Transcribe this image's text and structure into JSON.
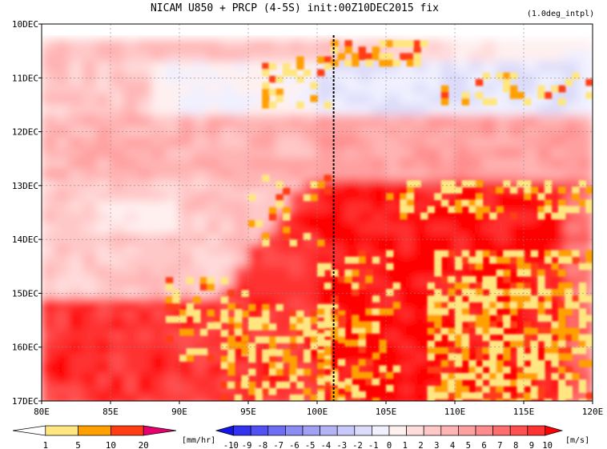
{
  "chart_data": {
    "type": "heatmap",
    "title": "NICAM   U850 + PRCP (4-5S) init:00Z10DEC2015 fix",
    "subtitle": "(1.0deg_intpl)",
    "xlabel": "",
    "ylabel": "",
    "x_ticks": [
      "80E",
      "85E",
      "90E",
      "95E",
      "100E",
      "105E",
      "110E",
      "115E",
      "120E"
    ],
    "x_tick_values": [
      80,
      85,
      90,
      95,
      100,
      105,
      110,
      115,
      120
    ],
    "xlim": [
      80,
      120
    ],
    "y_ticks": [
      "10DEC",
      "11DEC",
      "12DEC",
      "13DEC",
      "14DEC",
      "15DEC",
      "16DEC",
      "17DEC"
    ],
    "y_tick_values": [
      10,
      11,
      12,
      13,
      14,
      15,
      16,
      17
    ],
    "ylim": [
      10,
      17
    ],
    "grid": true,
    "marker_line_lon": 101.2,
    "precip_colorbar": {
      "labels": [
        "1",
        "5",
        "10",
        "20"
      ],
      "unit": "[mm/hr]",
      "colors": [
        "#ffffff",
        "#ffe680",
        "#ffa000",
        "#ff3c14",
        "#e6006e"
      ]
    },
    "wind_colorbar": {
      "labels": [
        "-10",
        "-9",
        "-8",
        "-7",
        "-6",
        "-5",
        "-4",
        "-3",
        "-2",
        "-1",
        "0",
        "1",
        "2",
        "3",
        "4",
        "5",
        "6",
        "7",
        "8",
        "9",
        "10"
      ],
      "unit": "[m/s]",
      "colors": [
        "#1414e6",
        "#3232f0",
        "#5050f5",
        "#6e6ef5",
        "#8c8cf5",
        "#a0a0f5",
        "#b4b4f5",
        "#c8c8fa",
        "#dcdcfa",
        "#f0f0ff",
        "#fff0f0",
        "#ffdcdc",
        "#ffc8c8",
        "#ffb4b4",
        "#ffa0a0",
        "#ff8c8c",
        "#ff6e6e",
        "#ff5050",
        "#ff3232",
        "#ff0000"
      ]
    },
    "u850_field_bands": [
      {
        "time_range": [
          10.3,
          10.7
        ],
        "lon_range": [
          80,
          120
        ],
        "mean_value": 3
      },
      {
        "time_range": [
          10.7,
          11.6
        ],
        "lon_range": [
          90,
          120
        ],
        "mean_value": -1
      },
      {
        "time_range": [
          11.6,
          12.8
        ],
        "lon_range": [
          80,
          120
        ],
        "mean_value": 4
      },
      {
        "time_range": [
          12.8,
          14.0
        ],
        "lon_range": [
          80,
          100
        ],
        "mean_value": 3
      },
      {
        "time_range": [
          13.0,
          17.0
        ],
        "lon_range": [
          100,
          118
        ],
        "mean_value": 10
      },
      {
        "time_range": [
          14.0,
          17.0
        ],
        "lon_range": [
          80,
          100
        ],
        "mean_value": 9
      }
    ]
  }
}
